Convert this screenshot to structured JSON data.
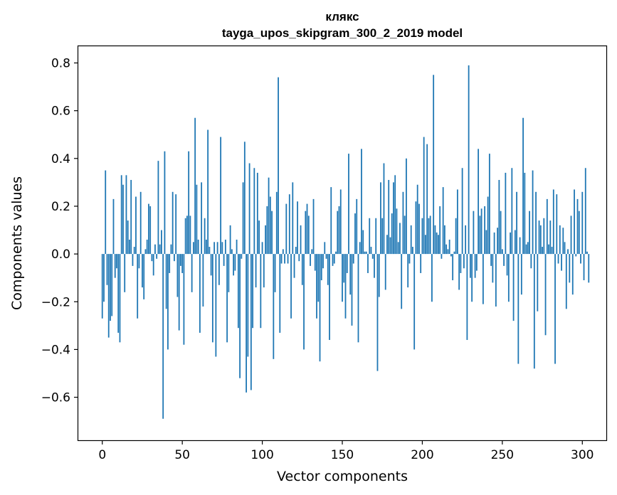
{
  "chart_data": {
    "type": "bar",
    "title_line1": "клякс",
    "title_line2": "tayga_upos_skipgram_300_2_2019 model",
    "xlabel": "Vector components",
    "ylabel": "Components values",
    "xlim": [
      -15,
      315
    ],
    "ylim": [
      -0.78,
      0.87
    ],
    "x_ticks": [
      0,
      50,
      100,
      150,
      200,
      250,
      300
    ],
    "x_tick_labels": [
      "0",
      "50",
      "100",
      "150",
      "200",
      "250",
      "300"
    ],
    "y_ticks": [
      -0.6,
      -0.4,
      -0.2,
      0.0,
      0.2,
      0.4,
      0.6,
      0.8
    ],
    "y_tick_labels": [
      "−0.6",
      "−0.4",
      "−0.2",
      "0.0",
      "0.2",
      "0.4",
      "0.6",
      "0.8"
    ],
    "bar_color": "#1f77b4",
    "grid": false,
    "values": [
      -0.27,
      -0.2,
      0.35,
      -0.13,
      -0.35,
      -0.28,
      -0.26,
      0.23,
      -0.1,
      -0.06,
      -0.33,
      -0.37,
      0.33,
      0.29,
      -0.16,
      0.33,
      0.14,
      0.06,
      0.31,
      -0.05,
      0.03,
      0.24,
      -0.27,
      -0.06,
      0.26,
      -0.14,
      -0.19,
      0.02,
      0.06,
      0.21,
      0.2,
      -0.03,
      -0.09,
      0.04,
      -0.02,
      0.39,
      0.04,
      0.1,
      -0.69,
      0.43,
      -0.23,
      -0.4,
      -0.08,
      0.04,
      0.26,
      -0.03,
      0.25,
      -0.18,
      -0.32,
      -0.05,
      -0.08,
      -0.38,
      0.15,
      0.16,
      0.43,
      0.16,
      -0.16,
      0.05,
      0.57,
      0.29,
      0.06,
      -0.33,
      0.3,
      -0.22,
      0.15,
      0.06,
      0.52,
      0.03,
      -0.09,
      -0.37,
      0.05,
      -0.43,
      0.05,
      -0.13,
      0.49,
      0.05,
      -0.05,
      0.06,
      -0.37,
      -0.16,
      0.12,
      0.02,
      -0.09,
      -0.07,
      0.06,
      -0.31,
      -0.52,
      -0.02,
      0.3,
      0.47,
      -0.58,
      -0.43,
      0.38,
      -0.57,
      -0.31,
      0.36,
      -0.14,
      0.34,
      0.14,
      -0.31,
      0.05,
      -0.14,
      0.12,
      0.2,
      0.32,
      0.24,
      0.18,
      -0.44,
      -0.16,
      0.26,
      0.74,
      -0.33,
      -0.04,
      0.02,
      -0.04,
      0.21,
      -0.04,
      0.25,
      -0.27,
      0.3,
      -0.1,
      0.03,
      0.22,
      -0.03,
      0.12,
      -0.13,
      -0.4,
      0.18,
      0.21,
      0.16,
      -0.05,
      0.02,
      0.23,
      -0.07,
      -0.27,
      -0.2,
      -0.45,
      -0.11,
      -0.06,
      0.05,
      -0.02,
      -0.13,
      -0.36,
      0.28,
      -0.05,
      -0.04,
      0.01,
      0.18,
      0.2,
      0.27,
      -0.2,
      -0.12,
      -0.27,
      -0.08,
      0.42,
      -0.17,
      -0.3,
      -0.04,
      0.17,
      0.23,
      -0.37,
      0.05,
      0.44,
      0.1,
      0.01,
      0.01,
      -0.08,
      0.15,
      0.03,
      -0.02,
      -0.1,
      0.15,
      -0.49,
      -0.18,
      0.3,
      0.15,
      0.38,
      -0.15,
      0.08,
      0.31,
      0.07,
      0.17,
      0.3,
      0.33,
      0.19,
      0.05,
      0.13,
      -0.23,
      0.26,
      0.16,
      0.4,
      -0.14,
      -0.04,
      0.12,
      0.03,
      -0.4,
      0.22,
      0.29,
      0.21,
      -0.08,
      0.15,
      0.49,
      0.08,
      0.46,
      0.15,
      0.16,
      -0.2,
      0.75,
      0.12,
      0.09,
      0.08,
      0.2,
      -0.02,
      0.28,
      0.12,
      0.04,
      0.02,
      0.06,
      -0.01,
      -0.11,
      0.01,
      0.15,
      0.27,
      -0.15,
      -0.08,
      0.36,
      -0.06,
      0.12,
      -0.36,
      0.79,
      -0.1,
      -0.2,
      0.18,
      -0.1,
      -0.07,
      0.44,
      0.16,
      0.19,
      -0.21,
      0.2,
      0.1,
      0.24,
      0.42,
      -0.05,
      -0.12,
      0.09,
      -0.22,
      0.11,
      0.31,
      0.18,
      0.02,
      -0.05,
      0.34,
      -0.09,
      -0.2,
      0.09,
      0.36,
      -0.28,
      0.1,
      0.26,
      -0.46,
      0.07,
      -0.17,
      0.57,
      0.34,
      0.04,
      0.05,
      0.18,
      -0.06,
      0.35,
      -0.48,
      0.26,
      -0.24,
      0.14,
      0.12,
      0.03,
      0.15,
      -0.34,
      0.23,
      0.04,
      0.14,
      0.03,
      0.27,
      -0.46,
      0.25,
      -0.04,
      0.12,
      -0.07,
      0.11,
      0.05,
      -0.23,
      0.02,
      -0.12,
      0.16,
      -0.17,
      0.27,
      -0.01,
      0.23,
      0.18,
      -0.04,
      0.26,
      -0.11,
      0.36,
      0.01,
      -0.12
    ]
  }
}
